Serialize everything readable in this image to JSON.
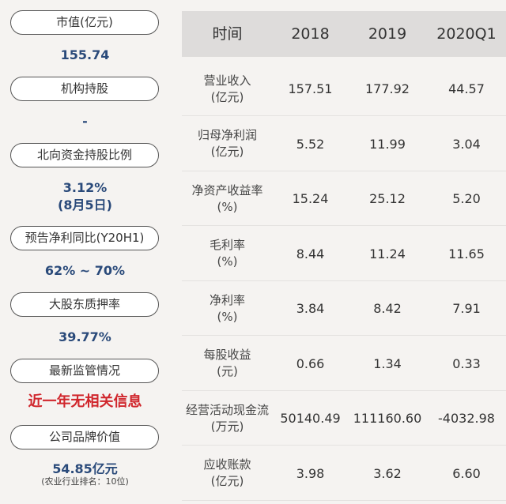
{
  "left_metrics": [
    {
      "label": "市值(亿元)",
      "value": "155.74"
    },
    {
      "label": "机构持股",
      "value": "-"
    },
    {
      "label": "北向资金持股比例",
      "value": "3.12%",
      "value2": "(8月5日)"
    },
    {
      "label": "预告净利同比(Y20H1)",
      "value": "62% ~ 70%"
    },
    {
      "label": "大股东质押率",
      "value": "39.77%"
    },
    {
      "label": "最新监管情况",
      "value": "近一年无相关信息"
    },
    {
      "label": "公司品牌价值",
      "value": "54.85亿元",
      "note": "(农业行业排名：10位)"
    }
  ],
  "table": {
    "headers": [
      "时间",
      "2018",
      "2019",
      "2020Q1"
    ],
    "rows": [
      {
        "label": "营业收入",
        "unit": "(亿元)",
        "values": [
          "157.51",
          "177.92",
          "44.57"
        ]
      },
      {
        "label": "归母净利润",
        "unit": "(亿元)",
        "values": [
          "5.52",
          "11.99",
          "3.04"
        ]
      },
      {
        "label": "净资产收益率",
        "unit": "(%)",
        "values": [
          "15.24",
          "25.12",
          "5.20"
        ]
      },
      {
        "label": "毛利率",
        "unit": "(%)",
        "values": [
          "8.44",
          "11.24",
          "11.65"
        ]
      },
      {
        "label": "净利率",
        "unit": "(%)",
        "values": [
          "3.84",
          "8.42",
          "7.91"
        ]
      },
      {
        "label": "每股收益",
        "unit": "(元)",
        "values": [
          "0.66",
          "1.34",
          "0.33"
        ]
      },
      {
        "label": "经营活动现金流",
        "unit": "(万元)",
        "values": [
          "50140.49",
          "111160.60",
          "-4032.98"
        ]
      },
      {
        "label": "应收账款",
        "unit": "(亿元)",
        "values": [
          "3.98",
          "3.62",
          "6.60"
        ]
      }
    ]
  },
  "colors": {
    "value_blue": "#2a4a7a",
    "alert_red": "#d0262c",
    "header_bg": "#dedcdb",
    "page_bg": "#f5f3f1"
  }
}
